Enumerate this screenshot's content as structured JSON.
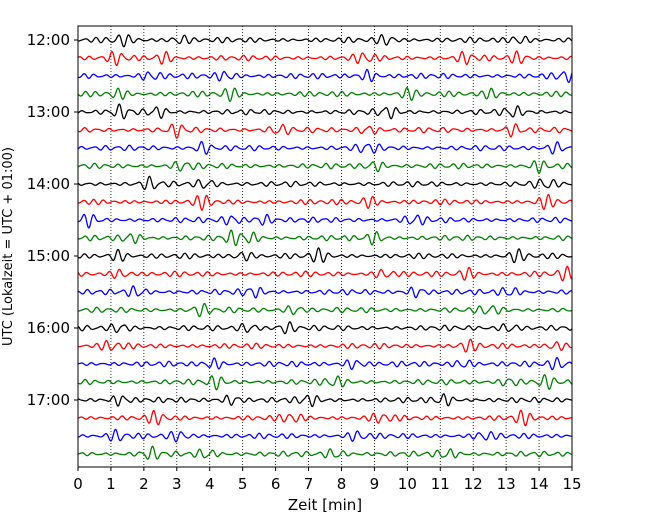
{
  "chart_data": {
    "type": "line",
    "title": "",
    "xlabel": "Zeit  [min]",
    "ylabel": "UTC (Lokalzeit = UTC + 01:00)",
    "xlim": [
      0,
      15
    ],
    "x_ticks": [
      "0",
      "1",
      "2",
      "3",
      "4",
      "5",
      "6",
      "7",
      "8",
      "9",
      "10",
      "11",
      "12",
      "13",
      "14",
      "15"
    ],
    "y_tick_labels": [
      "12:00",
      "13:00",
      "14:00",
      "15:00",
      "16:00",
      "17:00"
    ],
    "grid": "vertical dotted",
    "legend": "none",
    "trace_interval_minutes": 15,
    "trace_colors": [
      "#000000",
      "#ff0000",
      "#0000ff",
      "#008000"
    ],
    "traces": [
      {
        "start": "12:00",
        "color": "#000000",
        "bursts": [
          1.3,
          3.1,
          9.4,
          13.4
        ]
      },
      {
        "start": "12:15",
        "color": "#ff0000",
        "bursts": [
          1.2,
          2.6,
          8.7,
          11.8,
          13.4
        ]
      },
      {
        "start": "12:30",
        "color": "#0000ff",
        "bursts": [
          2.2,
          4.5,
          8.8,
          14.8
        ]
      },
      {
        "start": "12:45",
        "color": "#008000",
        "bursts": [
          1.2,
          4.6,
          10.0,
          12.6
        ]
      },
      {
        "start": "13:00",
        "color": "#000000",
        "bursts": [
          1.3,
          2.4,
          9.4,
          13.2
        ]
      },
      {
        "start": "13:15",
        "color": "#ff0000",
        "bursts": [
          3.0,
          6.1,
          8.8,
          13.2
        ]
      },
      {
        "start": "13:30",
        "color": "#0000ff",
        "bursts": [
          3.8,
          8.8,
          14.5
        ]
      },
      {
        "start": "13:45",
        "color": "#008000",
        "bursts": [
          3.2,
          9.0,
          14.0
        ]
      },
      {
        "start": "14:00",
        "color": "#000000",
        "bursts": [
          2.2,
          3.9,
          14.2
        ]
      },
      {
        "start": "14:15",
        "color": "#ff0000",
        "bursts": [
          3.8,
          8.8,
          14.2
        ]
      },
      {
        "start": "14:30",
        "color": "#0000ff",
        "bursts": [
          0.3,
          4.7,
          5.6,
          10.2
        ]
      },
      {
        "start": "14:45",
        "color": "#008000",
        "bursts": [
          1.6,
          4.7,
          5.2,
          9.0
        ]
      },
      {
        "start": "15:00",
        "color": "#000000",
        "bursts": [
          1.2,
          5.0,
          7.3,
          13.3
        ]
      },
      {
        "start": "15:15",
        "color": "#ff0000",
        "bursts": [
          1.3,
          9.3,
          11.8,
          14.8
        ]
      },
      {
        "start": "15:30",
        "color": "#0000ff",
        "bursts": [
          1.8,
          5.3,
          10.3,
          13.1
        ]
      },
      {
        "start": "15:45",
        "color": "#008000",
        "bursts": [
          3.7,
          6.6,
          12.5
        ]
      },
      {
        "start": "16:00",
        "color": "#000000",
        "bursts": [
          1.3,
          5.2,
          6.3,
          13.1
        ]
      },
      {
        "start": "16:15",
        "color": "#ff0000",
        "bursts": [
          1.0,
          11.8,
          14.5
        ]
      },
      {
        "start": "16:30",
        "color": "#0000ff",
        "bursts": [
          4.1,
          8.4,
          11.7,
          14.6
        ]
      },
      {
        "start": "16:45",
        "color": "#008000",
        "bursts": [
          4.2,
          7.8,
          13.1,
          14.2
        ]
      },
      {
        "start": "17:00",
        "color": "#000000",
        "bursts": [
          1.3,
          4.7,
          7.0,
          11.1
        ]
      },
      {
        "start": "17:15",
        "color": "#ff0000",
        "bursts": [
          2.4,
          6.5,
          9.2,
          13.5
        ]
      },
      {
        "start": "17:30",
        "color": "#0000ff",
        "bursts": [
          1.2,
          3.1,
          8.5,
          12.3
        ]
      },
      {
        "start": "17:45",
        "color": "#008000",
        "bursts": [
          2.2,
          3.9,
          7.8,
          11.2
        ]
      }
    ]
  }
}
